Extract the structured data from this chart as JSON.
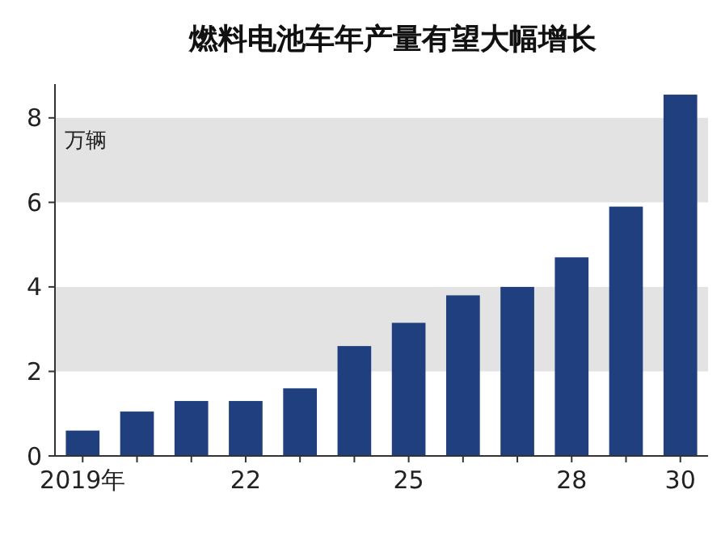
{
  "chart_data": {
    "type": "bar",
    "title": "燃料电池车年产量有望大幅增长",
    "ylabel": "万辆",
    "categories": [
      "2019年",
      null,
      null,
      "22",
      null,
      null,
      "25",
      null,
      null,
      "28",
      null,
      "30"
    ],
    "values": [
      0.6,
      1.05,
      1.3,
      1.3,
      1.6,
      2.6,
      3.15,
      3.8,
      4.0,
      4.7,
      5.9,
      8.55
    ],
    "color": "#1f3f7f",
    "ylim": [
      0,
      8.8
    ],
    "yticks": [
      0,
      2,
      4,
      6,
      8
    ],
    "grid": false,
    "bands": [
      {
        "axis": "y",
        "from": 2,
        "to": 4,
        "color": "#e3e3e3"
      },
      {
        "axis": "y",
        "from": 6,
        "to": 8,
        "color": "#e3e3e3"
      }
    ]
  }
}
